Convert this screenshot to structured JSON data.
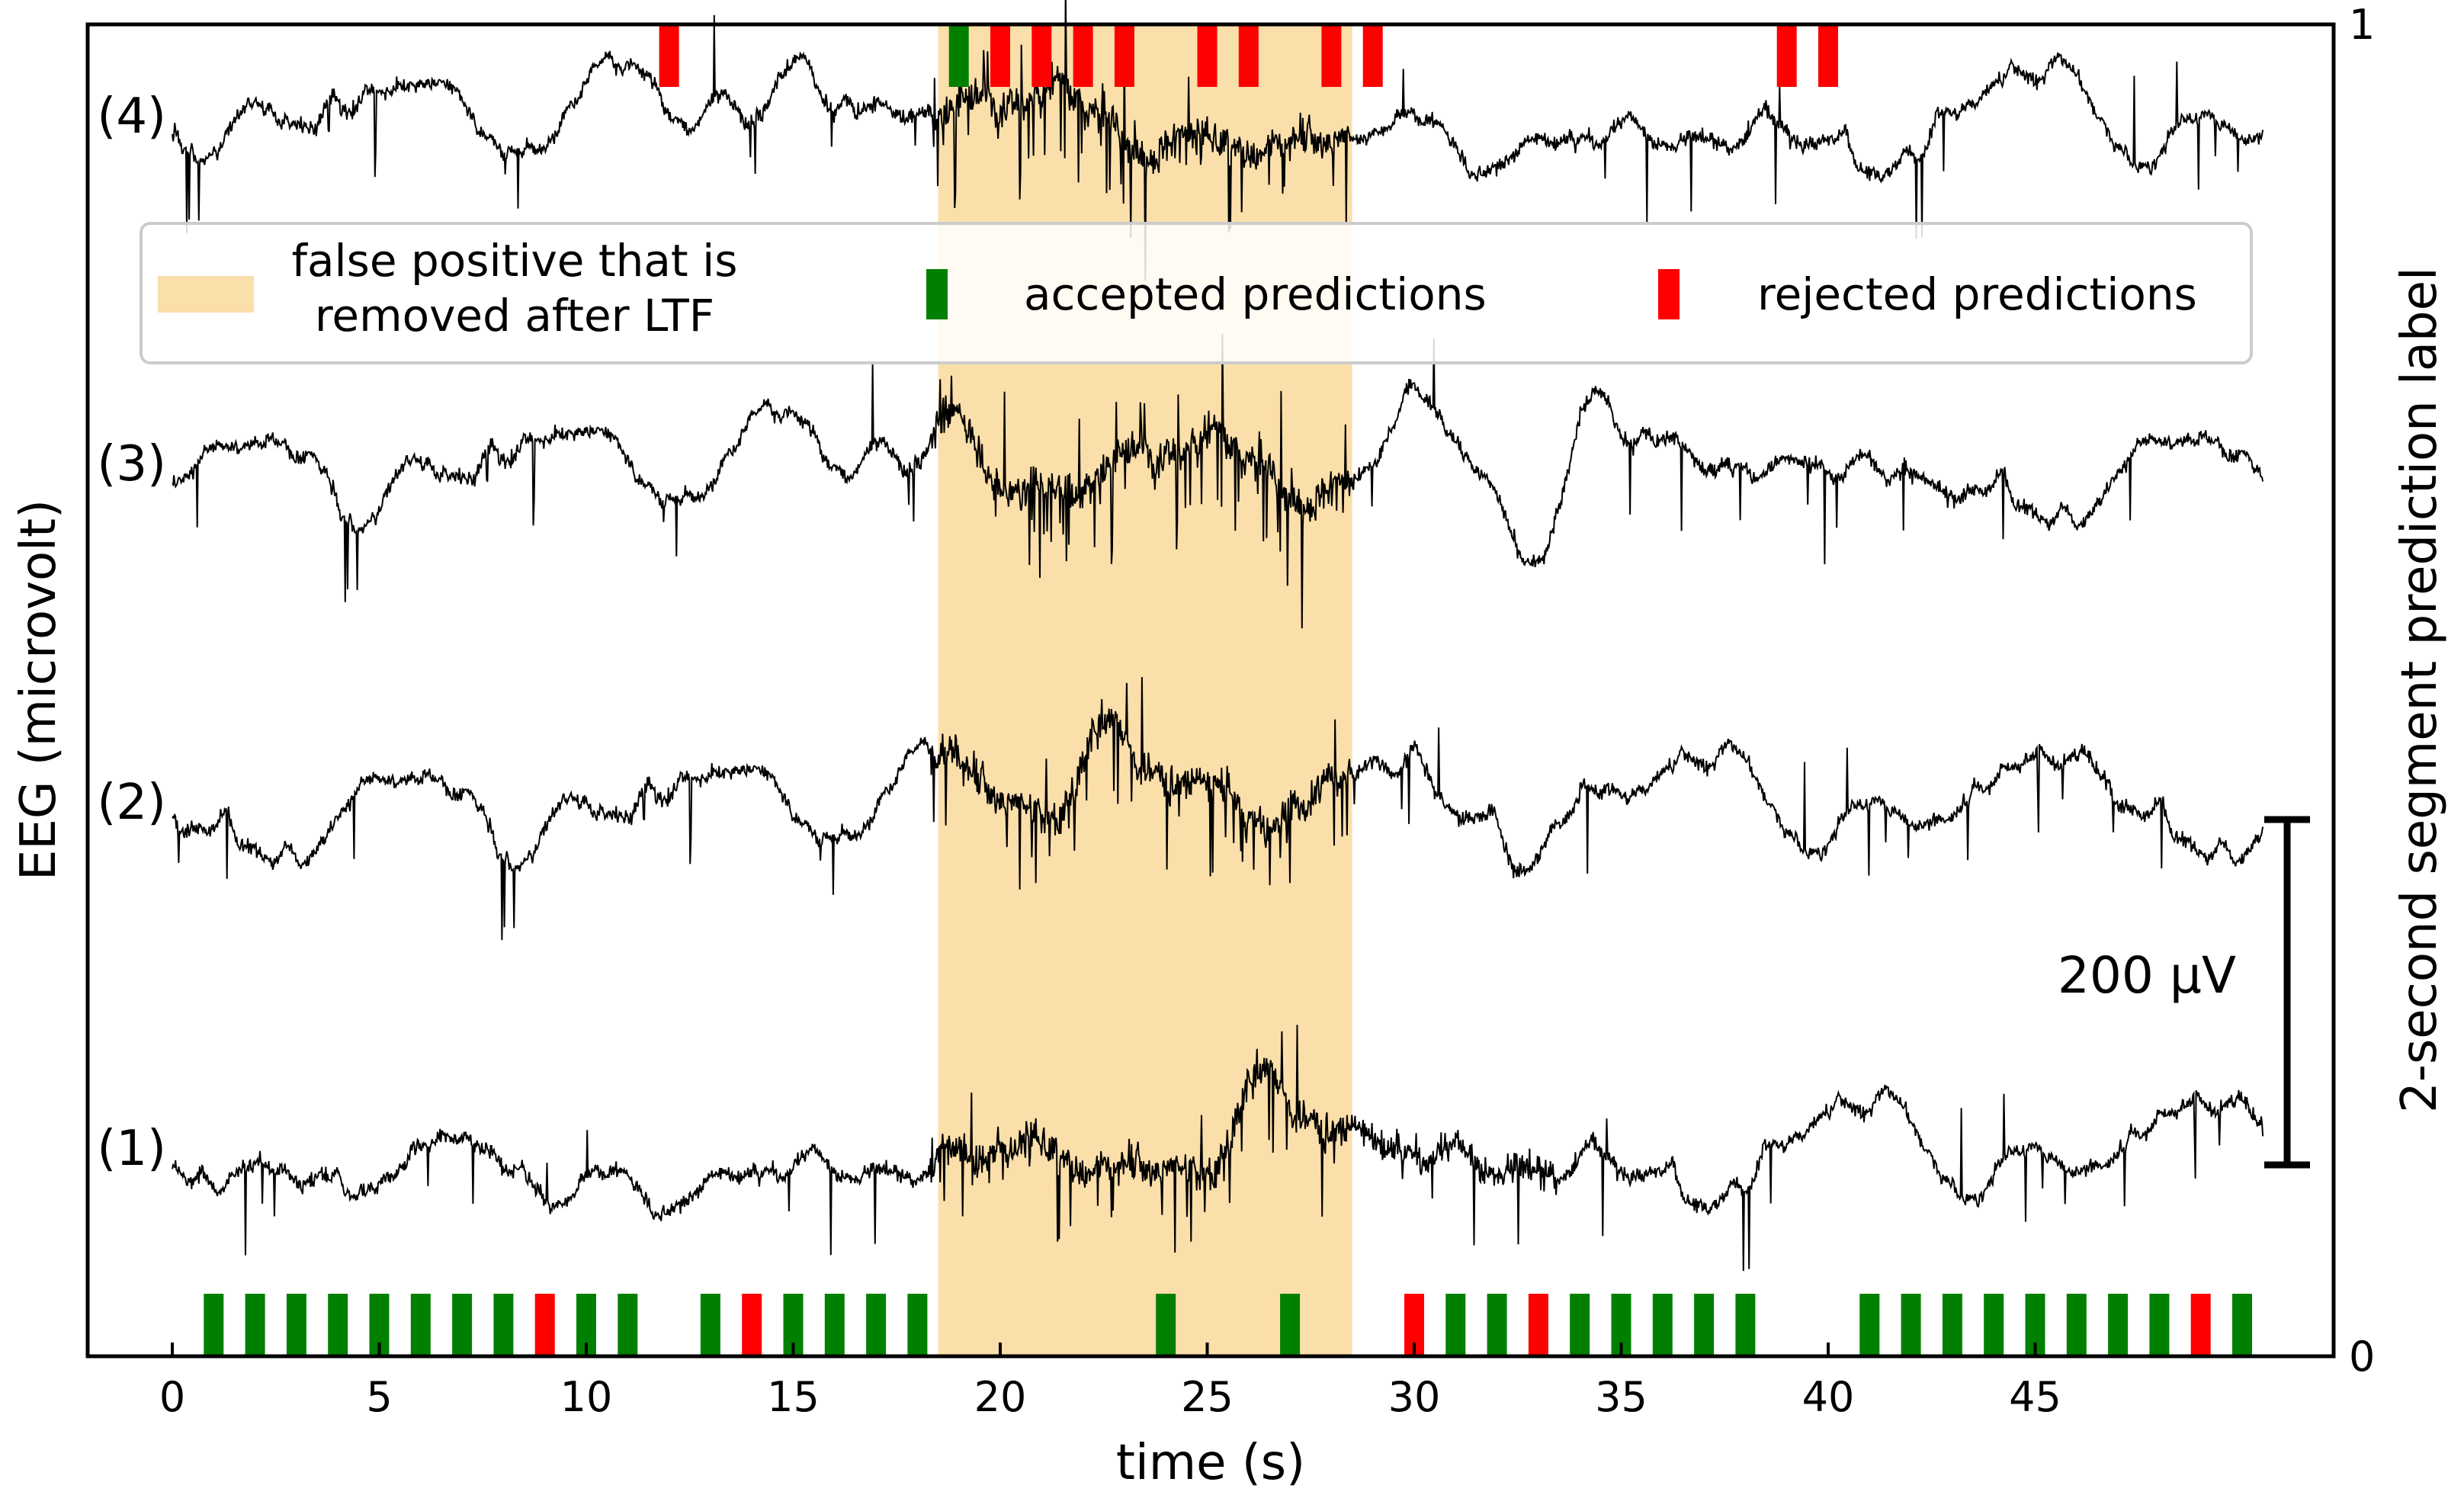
{
  "chart_data": {
    "type": "line",
    "title": "",
    "xlabel": "time (s)",
    "ylabel": "EEG (microvolt)",
    "y2label": "2-second segment prediction label",
    "xlim": [
      -2,
      52.5
    ],
    "x_ticks": [
      0,
      5,
      10,
      15,
      20,
      25,
      30,
      35,
      40,
      45
    ],
    "y2_ticks": [
      {
        "value": 0,
        "label": "0"
      },
      {
        "value": 1,
        "label": "1"
      }
    ],
    "grid": false,
    "legend_position": "upper-center",
    "false_positive_region": {
      "x_start": 18.5,
      "x_end": 28.5,
      "color": "#fbdfaa"
    },
    "scale_bar": {
      "value": 200,
      "label": "200 μV"
    },
    "channels": [
      {
        "label": "(1)",
        "order": 1
      },
      {
        "label": "(2)",
        "order": 2
      },
      {
        "label": "(3)",
        "order": 3
      },
      {
        "label": "(4)",
        "order": 4
      }
    ],
    "legend": [
      {
        "key": "false_positive",
        "label_lines": [
          "false positive that is",
          "removed after LTF"
        ],
        "color": "#fbdfaa"
      },
      {
        "key": "accepted",
        "label": "accepted predictions",
        "color": "#008000"
      },
      {
        "key": "rejected",
        "label": "rejected predictions",
        "color": "#ff0000"
      }
    ],
    "predictions_label_0": {
      "accepted": [
        1,
        2,
        3,
        4,
        5,
        6,
        7,
        8,
        10,
        11,
        13,
        15,
        16,
        17,
        18,
        24,
        27,
        31,
        32,
        34,
        35,
        36,
        37,
        38,
        41,
        42,
        43,
        44,
        45,
        46,
        47,
        48,
        50
      ],
      "rejected": [
        9,
        14,
        30,
        33,
        49
      ]
    },
    "predictions_label_1": {
      "accepted": [
        19
      ],
      "rejected": [
        12,
        20,
        21,
        22,
        23,
        25,
        26,
        28,
        29,
        39,
        40
      ]
    }
  }
}
